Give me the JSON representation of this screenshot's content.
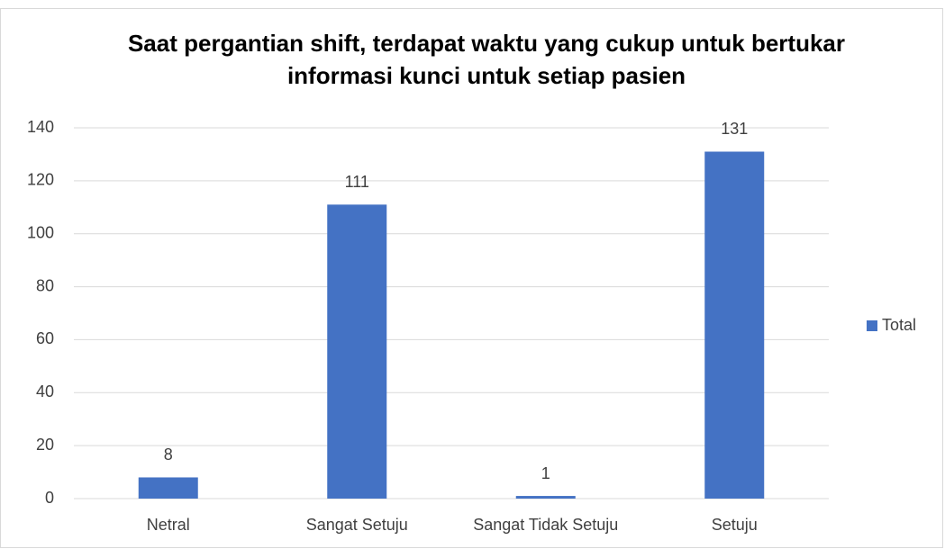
{
  "chart_data": {
    "type": "bar",
    "title": "Saat pergantian shift, terdapat waktu yang cukup untuk bertukar informasi kunci untuk setiap pasien",
    "categories": [
      "Netral",
      "Sangat Setuju",
      "Sangat Tidak Setuju",
      "Setuju"
    ],
    "series": [
      {
        "name": "Total",
        "color": "#4472c4",
        "values": [
          8,
          111,
          1,
          131
        ]
      }
    ],
    "ylim": [
      0,
      140
    ],
    "yticks": [
      0,
      20,
      40,
      60,
      80,
      100,
      120,
      140
    ],
    "grid": true,
    "legend": "right",
    "data_labels": true
  }
}
